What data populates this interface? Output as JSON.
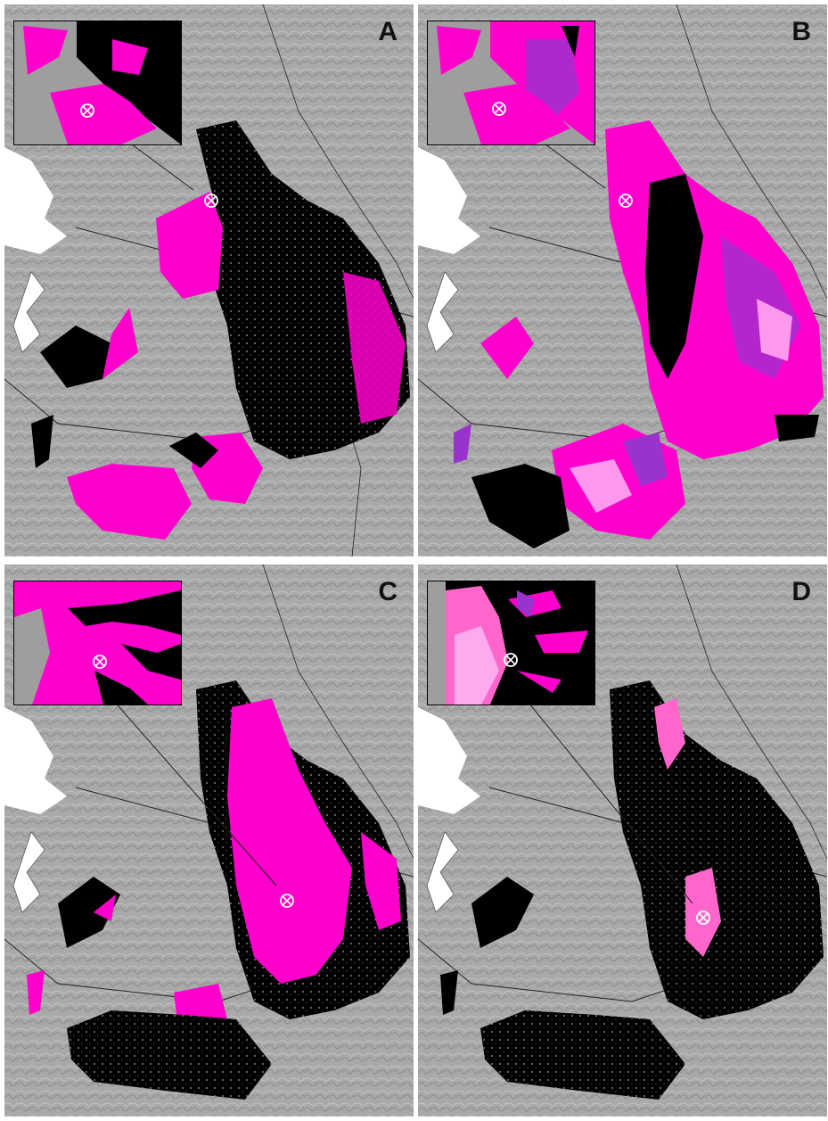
{
  "panels": [
    {
      "label": "A",
      "colors": {
        "primary": "#ff00cc",
        "secondary": "#000000"
      }
    },
    {
      "label": "B",
      "colors": {
        "primary": "#ff00cc",
        "secondary": "#9933cc",
        "tertiary": "#ff99ee"
      }
    },
    {
      "label": "C",
      "colors": {
        "primary": "#ff00cc",
        "secondary": "#000000"
      }
    },
    {
      "label": "D",
      "colors": {
        "primary": "#ff66cc",
        "secondary": "#000000"
      }
    }
  ],
  "map_style": {
    "background": "hillshade-gray",
    "water_color": "#ffffff",
    "marker_icon": "circle-x-icon"
  }
}
